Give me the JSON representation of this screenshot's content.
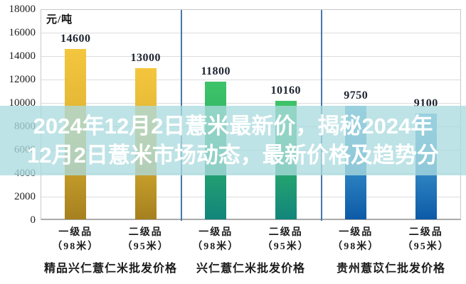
{
  "chart_data": {
    "type": "bar",
    "unit_label": "元/吨",
    "ylim": [
      0,
      18000
    ],
    "ytick_step": 2000,
    "ytick_labels": [
      "0",
      "2000",
      "4000",
      "6000",
      "8000",
      "10000",
      "12000",
      "14000",
      "16000",
      "18000"
    ],
    "categories": [
      "一级品（98米）",
      "二级品（95米）",
      "一级品（98米）",
      "二级品（95米）",
      "一级品（98米）",
      "二级品（95米）"
    ],
    "values": [
      14600,
      13000,
      11800,
      10160,
      9750,
      9100
    ],
    "grid": true,
    "grid_color": "#dcdcdc",
    "divider_color": "#4678a8",
    "axis_text_color": "#1c1c1c",
    "groups": [
      {
        "label": "精品兴仁薏仁米批发价格",
        "bar_color_top": "#f4c63e",
        "bar_color_mid": "#ddb232",
        "bar_color_bottom": "#a5801f",
        "bars": [
          {
            "grade": "一级品",
            "spec": "（98米）",
            "value": 14600,
            "value_label": "14600"
          },
          {
            "grade": "二级品",
            "spec": "（95米）",
            "value": 13000,
            "value_label": "13000"
          }
        ]
      },
      {
        "label": "兴仁薏仁米批发价格",
        "bar_color_top": "#3fc367",
        "bar_color_mid": "#2bad6c",
        "bar_color_bottom": "#12857b",
        "bars": [
          {
            "grade": "一级品",
            "spec": "（98米）",
            "value": 11800,
            "value_label": "11800"
          },
          {
            "grade": "二级品",
            "spec": "（95米）",
            "value": 10160,
            "value_label": "10160"
          }
        ]
      },
      {
        "label": "贵州薏苡仁批发价格",
        "bar_color_top": "#58aadb",
        "bar_color_mid": "#338bc6",
        "bar_color_bottom": "#0d5aa7",
        "bars": [
          {
            "grade": "一级品",
            "spec": "（98米）",
            "value": 9750,
            "value_label": "9750"
          },
          {
            "grade": "二级品",
            "spec": "（95米）",
            "value": 9100,
            "value_label": "9100"
          }
        ]
      }
    ]
  },
  "overlay": {
    "line1": "2024年12月2日薏米最新价，揭秘2024年",
    "line2": "12月2日薏米市场动态，最新价格及趋势分",
    "background_rgba": "rgba(172,219,223,0.78)",
    "text_color": "#ffffff"
  }
}
